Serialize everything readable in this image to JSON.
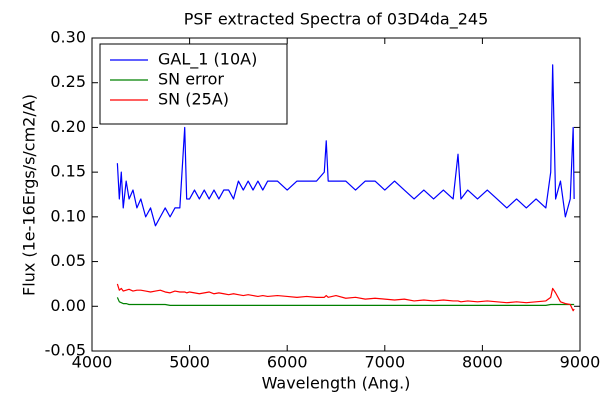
{
  "chart_data": {
    "type": "line",
    "title": "PSF extracted Spectra of 03D4da_245",
    "title_color": "#ff0000",
    "xlabel": "Wavelength (Ang.)",
    "ylabel": "Flux (1e-16Ergs/s/cm2/A)",
    "x": [
      4260,
      4280,
      4300,
      4320,
      4350,
      4380,
      4420,
      4460,
      4500,
      4550,
      4600,
      4650,
      4700,
      4750,
      4800,
      4850,
      4900,
      4950,
      4970,
      5000,
      5050,
      5100,
      5150,
      5200,
      5250,
      5300,
      5350,
      5400,
      5450,
      5500,
      5550,
      5600,
      5650,
      5700,
      5750,
      5800,
      5900,
      6000,
      6100,
      6200,
      6300,
      6380,
      6400,
      6420,
      6500,
      6600,
      6700,
      6800,
      6900,
      7000,
      7100,
      7200,
      7300,
      7400,
      7500,
      7600,
      7700,
      7750,
      7780,
      7850,
      7950,
      8050,
      8150,
      8250,
      8350,
      8450,
      8550,
      8650,
      8700,
      8720,
      8750,
      8800,
      8850,
      8900,
      8930,
      8940
    ],
    "series": [
      {
        "name": "GAL_1 (10A)",
        "color": "#0000ff",
        "values": [
          0.16,
          0.12,
          0.15,
          0.11,
          0.14,
          0.12,
          0.13,
          0.11,
          0.12,
          0.1,
          0.11,
          0.09,
          0.1,
          0.11,
          0.1,
          0.11,
          0.11,
          0.2,
          0.12,
          0.12,
          0.13,
          0.12,
          0.13,
          0.12,
          0.13,
          0.12,
          0.13,
          0.13,
          0.12,
          0.14,
          0.13,
          0.14,
          0.13,
          0.14,
          0.13,
          0.14,
          0.14,
          0.13,
          0.14,
          0.14,
          0.14,
          0.15,
          0.185,
          0.14,
          0.14,
          0.14,
          0.13,
          0.14,
          0.14,
          0.13,
          0.14,
          0.13,
          0.12,
          0.13,
          0.12,
          0.13,
          0.12,
          0.17,
          0.12,
          0.13,
          0.12,
          0.13,
          0.12,
          0.11,
          0.12,
          0.11,
          0.12,
          0.11,
          0.15,
          0.27,
          0.12,
          0.14,
          0.1,
          0.12,
          0.2,
          0.12
        ]
      },
      {
        "name": "SN error",
        "color": "#008000",
        "values": [
          0.01,
          0.005,
          0.004,
          0.003,
          0.003,
          0.002,
          0.002,
          0.002,
          0.002,
          0.002,
          0.002,
          0.002,
          0.002,
          0.002,
          0.001,
          0.001,
          0.001,
          0.001,
          0.001,
          0.001,
          0.001,
          0.001,
          0.001,
          0.001,
          0.001,
          0.001,
          0.001,
          0.001,
          0.001,
          0.001,
          0.001,
          0.001,
          0.001,
          0.001,
          0.001,
          0.001,
          0.001,
          0.001,
          0.001,
          0.001,
          0.001,
          0.001,
          0.001,
          0.001,
          0.001,
          0.001,
          0.001,
          0.001,
          0.001,
          0.001,
          0.001,
          0.001,
          0.001,
          0.001,
          0.001,
          0.001,
          0.001,
          0.001,
          0.001,
          0.001,
          0.001,
          0.001,
          0.001,
          0.001,
          0.001,
          0.001,
          0.001,
          0.001,
          0.002,
          0.002,
          0.002,
          0.002,
          0.002,
          0.002,
          0.002,
          0.002
        ]
      },
      {
        "name": "SN (25A)",
        "color": "#ff0000",
        "values": [
          0.025,
          0.018,
          0.02,
          0.017,
          0.018,
          0.019,
          0.017,
          0.018,
          0.018,
          0.017,
          0.016,
          0.017,
          0.018,
          0.016,
          0.015,
          0.017,
          0.016,
          0.016,
          0.015,
          0.016,
          0.015,
          0.014,
          0.015,
          0.016,
          0.014,
          0.015,
          0.014,
          0.013,
          0.014,
          0.013,
          0.012,
          0.013,
          0.012,
          0.011,
          0.012,
          0.011,
          0.012,
          0.011,
          0.01,
          0.011,
          0.01,
          0.01,
          0.012,
          0.01,
          0.012,
          0.009,
          0.01,
          0.008,
          0.009,
          0.008,
          0.007,
          0.008,
          0.006,
          0.007,
          0.006,
          0.007,
          0.006,
          0.006,
          0.005,
          0.006,
          0.005,
          0.006,
          0.005,
          0.004,
          0.005,
          0.004,
          0.005,
          0.006,
          0.01,
          0.02,
          0.015,
          0.005,
          0.003,
          0.002,
          -0.005,
          -0.003
        ]
      }
    ],
    "xlim": [
      4000,
      9000
    ],
    "xticks": [
      4000,
      5000,
      6000,
      7000,
      8000,
      9000
    ],
    "ylim": [
      -0.05,
      0.3
    ],
    "yticks": [
      -0.05,
      {
        "value": 0,
        "label": "0.00"
      },
      0.05,
      {
        "value": 0.1,
        "label": "0.10"
      },
      0.15,
      {
        "value": 0.2,
        "label": "0.20"
      },
      0.25,
      {
        "value": 0.3,
        "label": "0.30"
      }
    ],
    "grid": false,
    "legend": "upper left"
  }
}
